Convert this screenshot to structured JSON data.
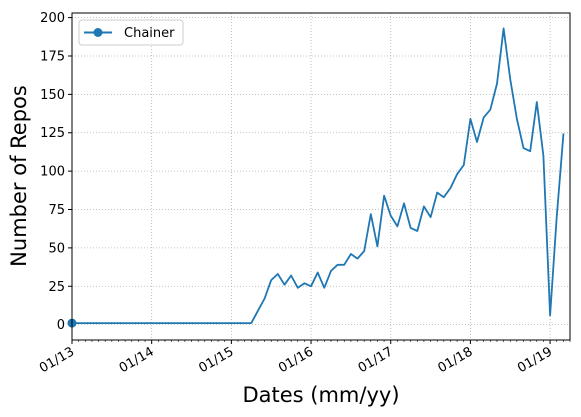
{
  "chart_data": {
    "type": "line",
    "title": "",
    "xlabel": "Dates (mm/yy)",
    "ylabel": "Number of Repos",
    "x_ticks": [
      "01/13",
      "01/14",
      "01/15",
      "01/16",
      "01/17",
      "01/18",
      "01/19"
    ],
    "y_ticks": [
      "0",
      "25",
      "50",
      "75",
      "100",
      "125",
      "150",
      "175",
      "200"
    ],
    "xlim": [
      "2013-01",
      "2019-04"
    ],
    "ylim": [
      -10,
      203
    ],
    "grid": true,
    "legend_position": "upper-left",
    "series": [
      {
        "name": "Chainer",
        "color": "#1f77b4",
        "marker_on_first_point": true,
        "points": [
          [
            "2013-01",
            1
          ],
          [
            "2013-06",
            1
          ],
          [
            "2014-01",
            1
          ],
          [
            "2014-06",
            1
          ],
          [
            "2015-01",
            1
          ],
          [
            "2015-04",
            1
          ],
          [
            "2015-05",
            9
          ],
          [
            "2015-06",
            17
          ],
          [
            "2015-07",
            29
          ],
          [
            "2015-08",
            33
          ],
          [
            "2015-09",
            26
          ],
          [
            "2015-10",
            32
          ],
          [
            "2015-11",
            24
          ],
          [
            "2015-12",
            27
          ],
          [
            "2016-01",
            25
          ],
          [
            "2016-02",
            34
          ],
          [
            "2016-03",
            24
          ],
          [
            "2016-04",
            35
          ],
          [
            "2016-05",
            39
          ],
          [
            "2016-06",
            39
          ],
          [
            "2016-07",
            46
          ],
          [
            "2016-08",
            43
          ],
          [
            "2016-09",
            48
          ],
          [
            "2016-10",
            72
          ],
          [
            "2016-11",
            51
          ],
          [
            "2016-12",
            84
          ],
          [
            "2017-01",
            71
          ],
          [
            "2017-02",
            64
          ],
          [
            "2017-03",
            79
          ],
          [
            "2017-04",
            63
          ],
          [
            "2017-05",
            61
          ],
          [
            "2017-06",
            77
          ],
          [
            "2017-07",
            70
          ],
          [
            "2017-08",
            86
          ],
          [
            "2017-09",
            83
          ],
          [
            "2017-10",
            89
          ],
          [
            "2017-11",
            98
          ],
          [
            "2017-12",
            104
          ],
          [
            "2018-01",
            134
          ],
          [
            "2018-02",
            119
          ],
          [
            "2018-03",
            135
          ],
          [
            "2018-04",
            140
          ],
          [
            "2018-05",
            157
          ],
          [
            "2018-06",
            193
          ],
          [
            "2018-07",
            160
          ],
          [
            "2018-08",
            134
          ],
          [
            "2018-09",
            115
          ],
          [
            "2018-10",
            113
          ],
          [
            "2018-11",
            145
          ],
          [
            "2018-12",
            110
          ],
          [
            "2019-01",
            6
          ],
          [
            "2019-02",
            70
          ],
          [
            "2019-03",
            124
          ]
        ]
      }
    ]
  }
}
